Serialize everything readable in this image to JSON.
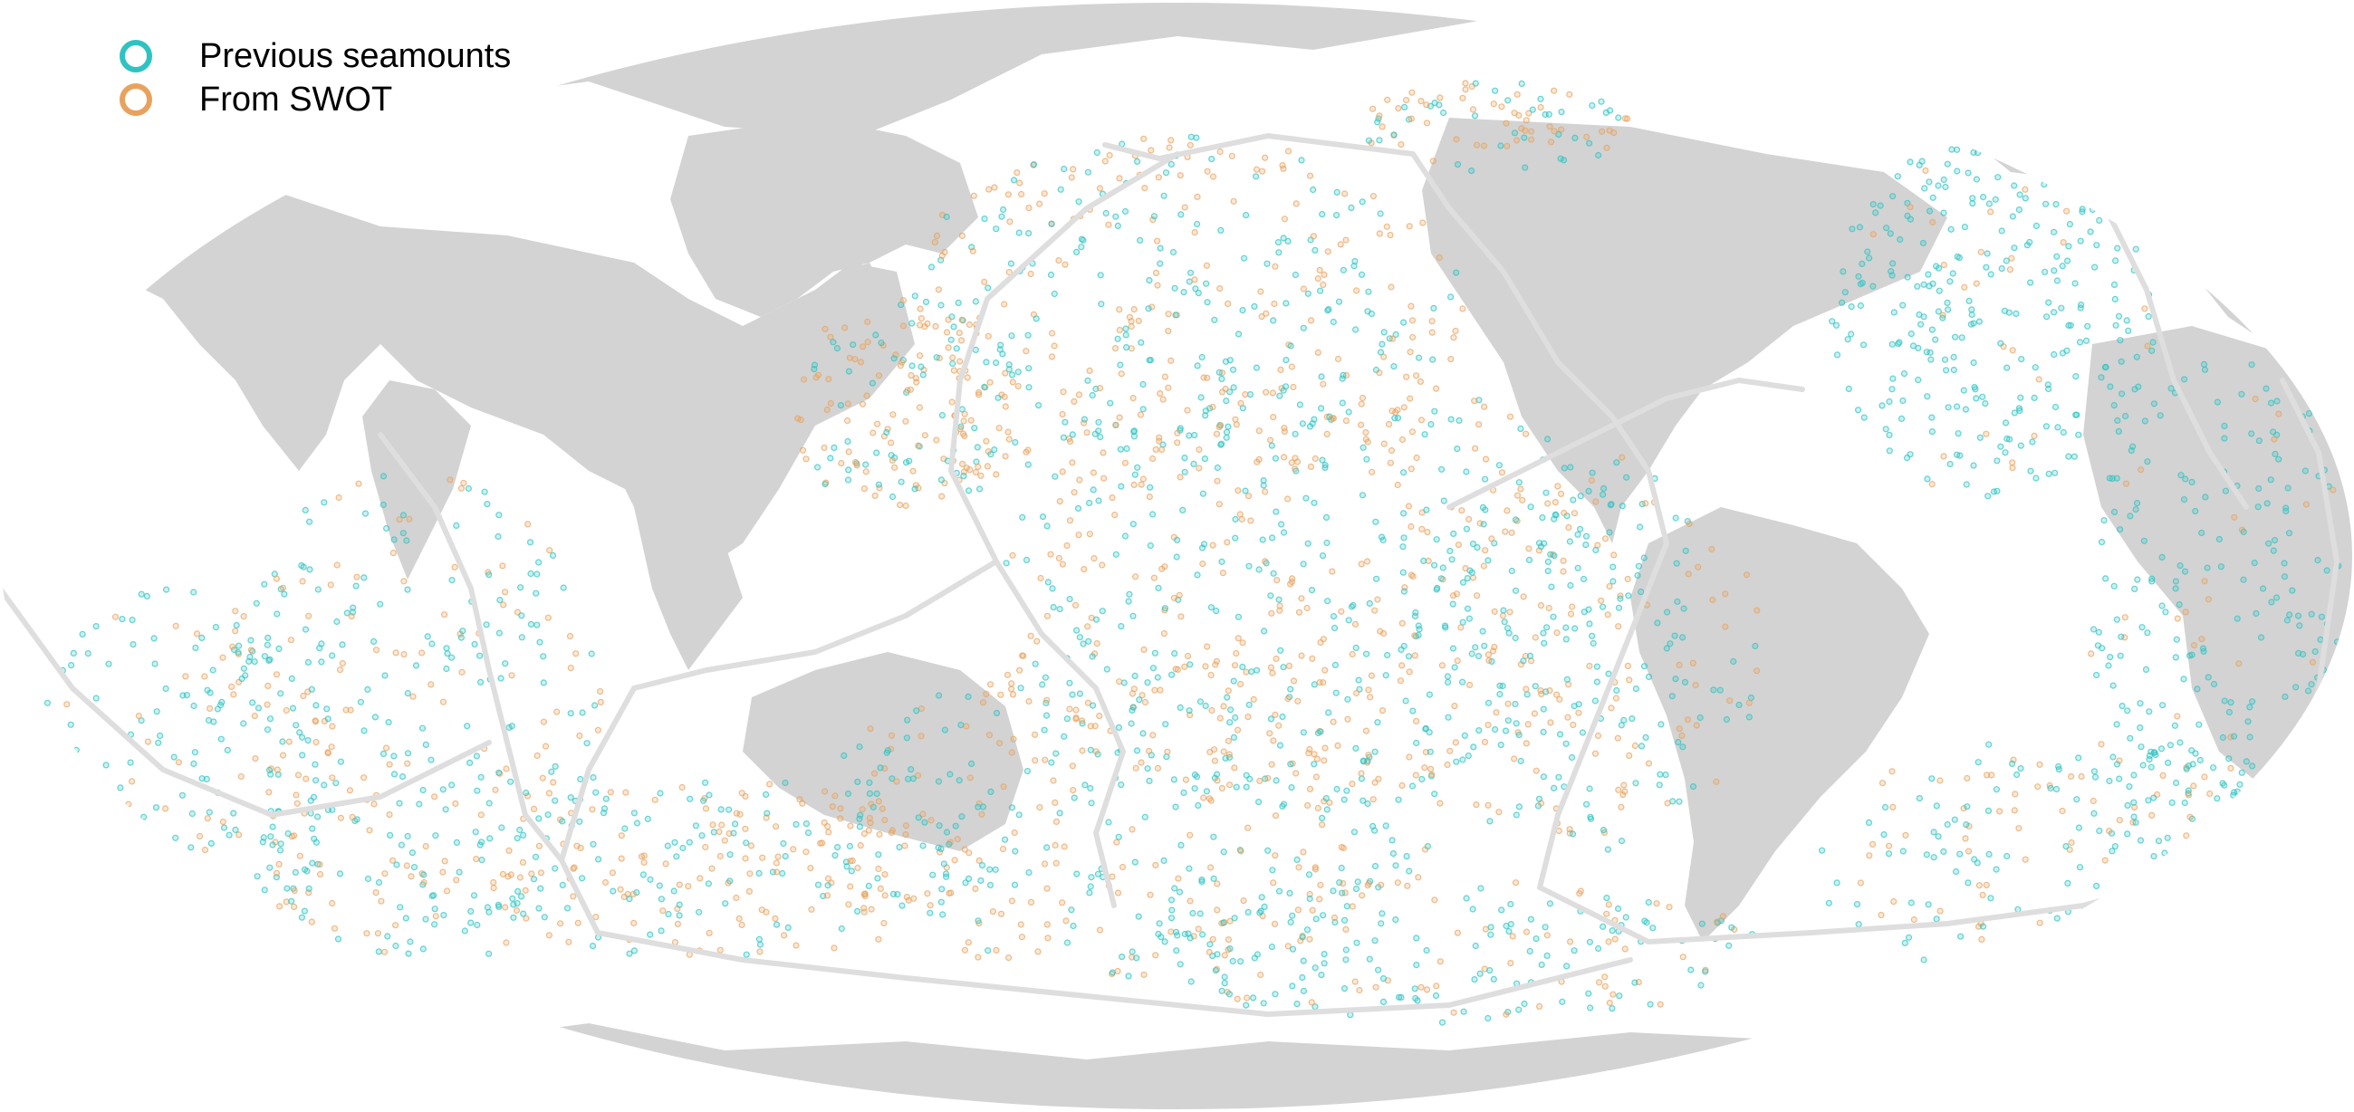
{
  "colors": {
    "land": "#d3d3d3",
    "ocean": "#ffffff",
    "plate_boundary": "#dedede",
    "previous_seamounts": "#2fc2c2",
    "swot": "#e8a25e"
  },
  "legend": {
    "items": [
      {
        "label": "Previous seamounts",
        "color": "#2fc2c2",
        "icon": "open-circle-icon"
      },
      {
        "label": "From SWOT",
        "color": "#e8a25e",
        "icon": "open-circle-icon"
      }
    ]
  }
}
